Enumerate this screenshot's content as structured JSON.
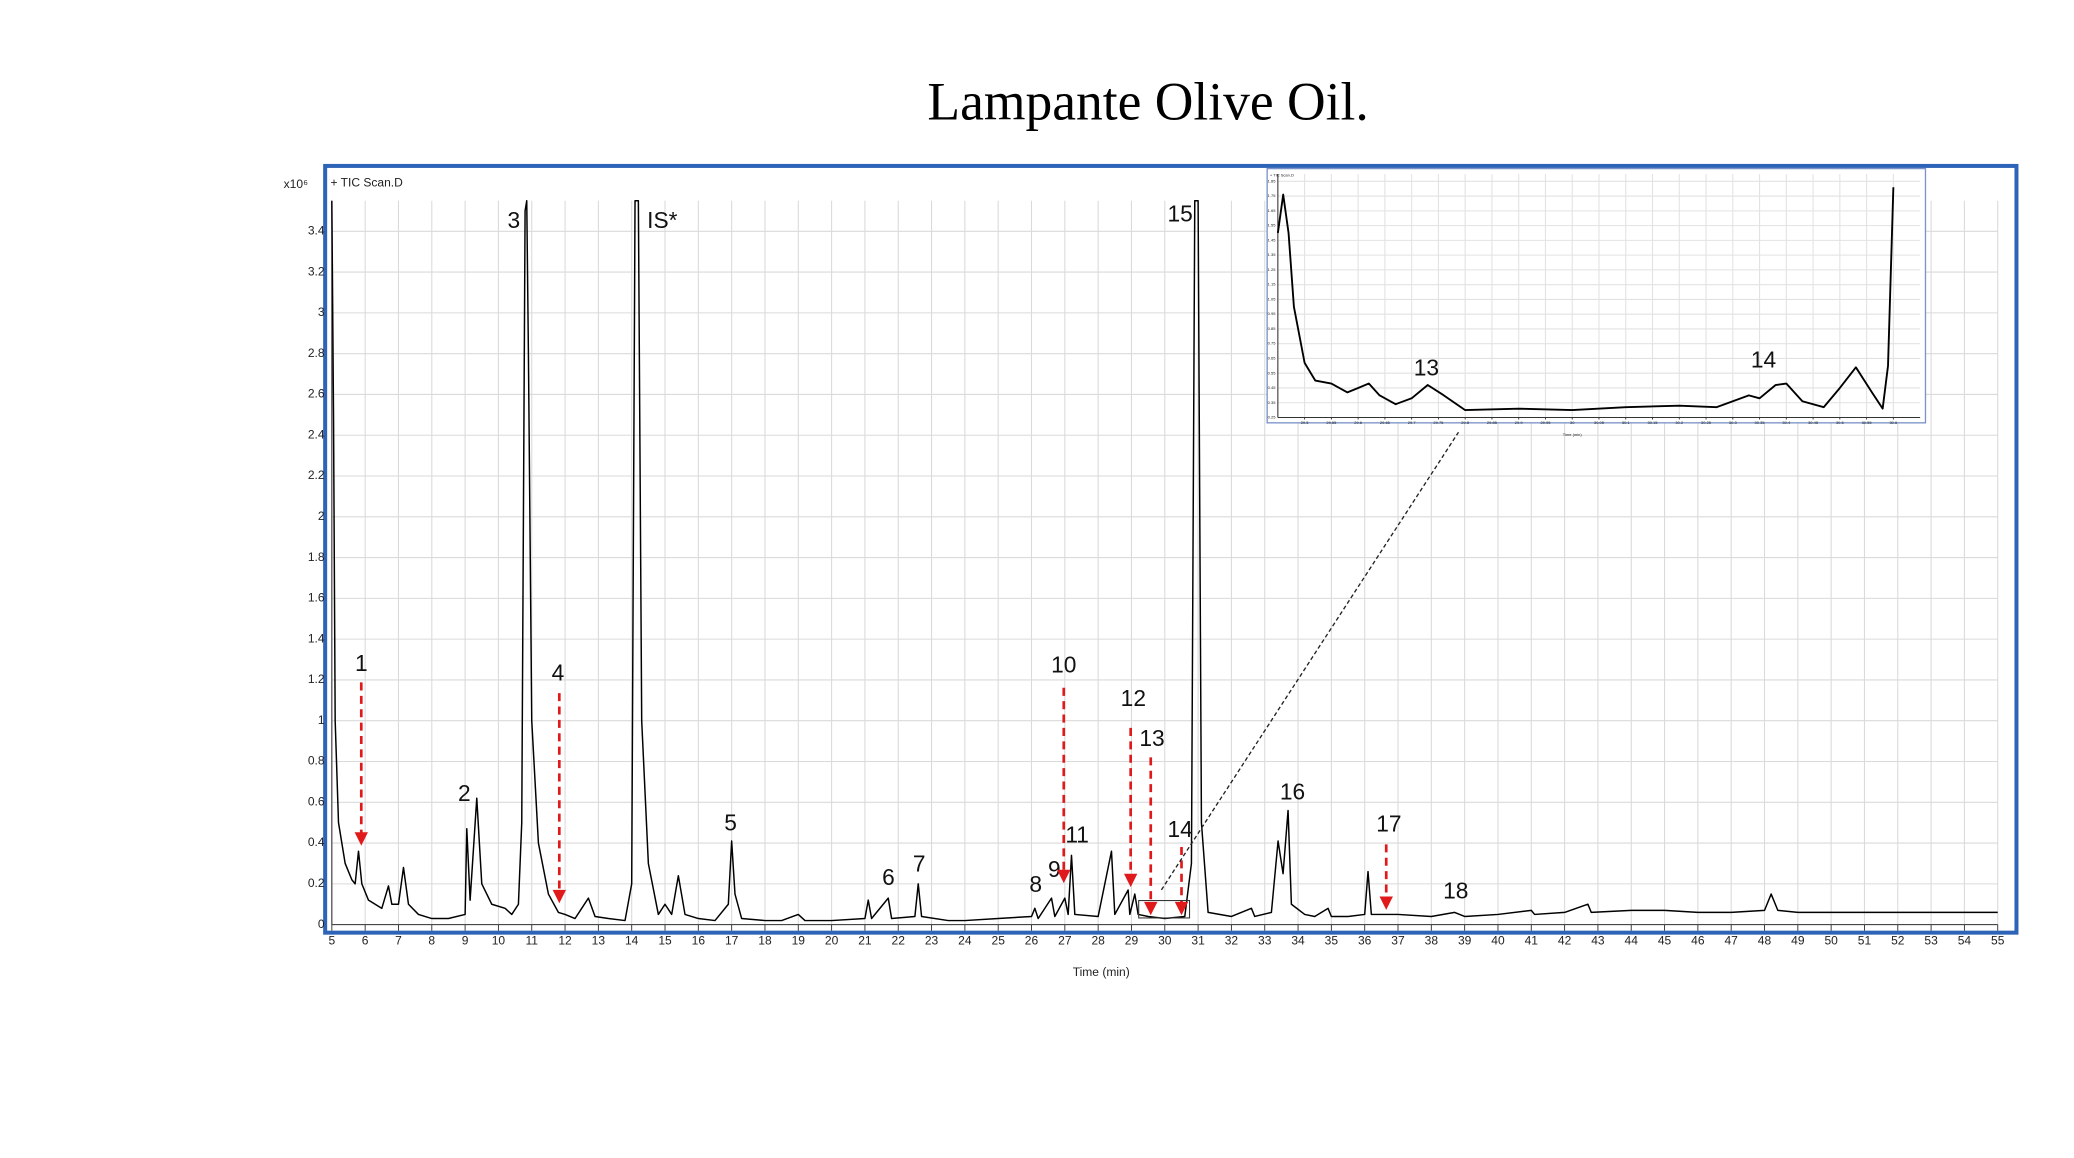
{
  "title": "Lampante Olive Oil.",
  "chart_data": [
    {
      "type": "line",
      "legend": "+ TIC Scan.D",
      "y_unit": "x10⁶",
      "x_label": "Time (min)",
      "color": "#000000",
      "grid": true,
      "xlim": [
        5,
        55
      ],
      "ylim": [
        0,
        3.55
      ],
      "xticks": [
        5,
        6,
        7,
        8,
        9,
        10,
        11,
        12,
        13,
        14,
        15,
        16,
        17,
        18,
        19,
        20,
        21,
        22,
        23,
        24,
        25,
        26,
        27,
        28,
        29,
        30,
        31,
        32,
        33,
        34,
        35,
        36,
        37,
        38,
        39,
        40,
        41,
        42,
        43,
        44,
        45,
        46,
        47,
        48,
        49,
        50,
        51,
        52,
        53,
        54,
        55
      ],
      "yticks": [
        0,
        0.2,
        0.4,
        0.6,
        0.8,
        1,
        1.2,
        1.4,
        1.6,
        1.8,
        2,
        2.2,
        2.4,
        2.6,
        2.8,
        3,
        3.2,
        3.4
      ],
      "peak_labels": [
        "1",
        "2",
        "3",
        "4",
        "IS*",
        "5",
        "6",
        "7",
        "8",
        "9",
        "10",
        "11",
        "12",
        "13",
        "14",
        "15",
        "16",
        "17",
        "18"
      ],
      "x": [
        5.0,
        5.05,
        5.1,
        5.2,
        5.4,
        5.6,
        5.7,
        5.8,
        5.9,
        6.1,
        6.5,
        6.7,
        6.8,
        7.0,
        7.15,
        7.3,
        7.6,
        8.0,
        8.5,
        9.0,
        9.05,
        9.15,
        9.35,
        9.5,
        9.8,
        10.2,
        10.4,
        10.6,
        10.7,
        10.8,
        10.85,
        10.9,
        11.0,
        11.2,
        11.5,
        11.8,
        12.0,
        12.3,
        12.5,
        12.7,
        12.9,
        13.3,
        13.8,
        14.0,
        14.1,
        14.2,
        14.3,
        14.5,
        14.8,
        15.0,
        15.2,
        15.4,
        15.6,
        16.0,
        16.5,
        16.9,
        17.0,
        17.1,
        17.3,
        18.0,
        18.5,
        19.0,
        19.2,
        20.0,
        21.0,
        21.1,
        21.2,
        21.7,
        21.8,
        22.5,
        22.6,
        22.7,
        23.5,
        24.0,
        25.0,
        26.0,
        26.1,
        26.2,
        26.6,
        26.7,
        27.0,
        27.1,
        27.2,
        27.3,
        28.0,
        28.4,
        28.5,
        28.9,
        28.95,
        29.1,
        29.2,
        29.5,
        30.0,
        30.6,
        30.8,
        30.9,
        31.0,
        31.1,
        31.3,
        32.0,
        32.6,
        32.7,
        33.2,
        33.4,
        33.55,
        33.7,
        33.8,
        34.2,
        34.5,
        34.9,
        35.0,
        35.5,
        36.0,
        36.1,
        36.2,
        36.7,
        37.0,
        38.0,
        38.7,
        39.0,
        40.0,
        41.0,
        41.1,
        42.0,
        42.7,
        42.8,
        44.0,
        45.0,
        46.0,
        47.0,
        48.0,
        48.2,
        48.4,
        49.0,
        50.0,
        52.0,
        55.0
      ],
      "values": [
        3.55,
        2.5,
        1.0,
        0.5,
        0.3,
        0.22,
        0.2,
        0.36,
        0.2,
        0.12,
        0.08,
        0.19,
        0.1,
        0.1,
        0.28,
        0.1,
        0.05,
        0.03,
        0.03,
        0.05,
        0.47,
        0.12,
        0.62,
        0.2,
        0.1,
        0.08,
        0.05,
        0.1,
        0.5,
        3.5,
        3.55,
        2.8,
        1.0,
        0.4,
        0.15,
        0.06,
        0.05,
        0.03,
        0.08,
        0.13,
        0.04,
        0.03,
        0.02,
        0.2,
        3.55,
        3.55,
        1.0,
        0.3,
        0.05,
        0.1,
        0.05,
        0.24,
        0.05,
        0.03,
        0.02,
        0.1,
        0.41,
        0.15,
        0.03,
        0.02,
        0.02,
        0.05,
        0.02,
        0.02,
        0.03,
        0.12,
        0.03,
        0.13,
        0.03,
        0.04,
        0.2,
        0.04,
        0.02,
        0.02,
        0.03,
        0.04,
        0.08,
        0.03,
        0.13,
        0.04,
        0.13,
        0.05,
        0.34,
        0.05,
        0.04,
        0.36,
        0.05,
        0.17,
        0.05,
        0.15,
        0.05,
        0.04,
        0.03,
        0.04,
        0.3,
        3.55,
        3.55,
        0.5,
        0.06,
        0.04,
        0.08,
        0.04,
        0.06,
        0.41,
        0.25,
        0.56,
        0.1,
        0.05,
        0.04,
        0.08,
        0.04,
        0.04,
        0.05,
        0.26,
        0.05,
        0.05,
        0.05,
        0.04,
        0.06,
        0.04,
        0.05,
        0.07,
        0.05,
        0.06,
        0.1,
        0.06,
        0.07,
        0.07,
        0.06,
        0.06,
        0.07,
        0.15,
        0.07,
        0.06,
        0.06,
        0.06,
        0.06
      ]
    },
    {
      "type": "line",
      "legend": "+ TIC Scan.D",
      "x_label": "Time (min)",
      "color": "#000000",
      "grid": true,
      "xlim": [
        29.45,
        30.65
      ],
      "ylim": [
        0.25,
        1.9
      ],
      "xticks": [
        29.5,
        29.55,
        29.6,
        29.65,
        29.7,
        29.75,
        29.8,
        29.85,
        29.9,
        29.95,
        30,
        30.05,
        30.1,
        30.15,
        30.2,
        30.25,
        30.3,
        30.35,
        30.4,
        30.45,
        30.5,
        30.55,
        30.6
      ],
      "yticks": [
        0.25,
        0.35,
        0.45,
        0.55,
        0.65,
        0.75,
        0.85,
        0.95,
        1.05,
        1.15,
        1.25,
        1.35,
        1.45,
        1.55,
        1.65,
        1.75,
        1.85
      ],
      "peak_labels": [
        "13",
        "14"
      ],
      "x": [
        29.45,
        29.46,
        29.47,
        29.48,
        29.5,
        29.52,
        29.55,
        29.58,
        29.6,
        29.62,
        29.64,
        29.67,
        29.7,
        29.73,
        29.76,
        29.8,
        29.9,
        30.0,
        30.1,
        30.2,
        30.27,
        30.3,
        30.33,
        30.35,
        30.38,
        30.4,
        30.43,
        30.47,
        30.5,
        30.53,
        30.56,
        30.58,
        30.59,
        30.6
      ],
      "values": [
        1.5,
        1.76,
        1.5,
        1.0,
        0.62,
        0.5,
        0.48,
        0.42,
        0.45,
        0.48,
        0.4,
        0.34,
        0.38,
        0.47,
        0.4,
        0.3,
        0.31,
        0.3,
        0.32,
        0.33,
        0.32,
        0.36,
        0.4,
        0.38,
        0.47,
        0.48,
        0.36,
        0.32,
        0.45,
        0.59,
        0.42,
        0.31,
        0.6,
        1.81
      ]
    }
  ]
}
